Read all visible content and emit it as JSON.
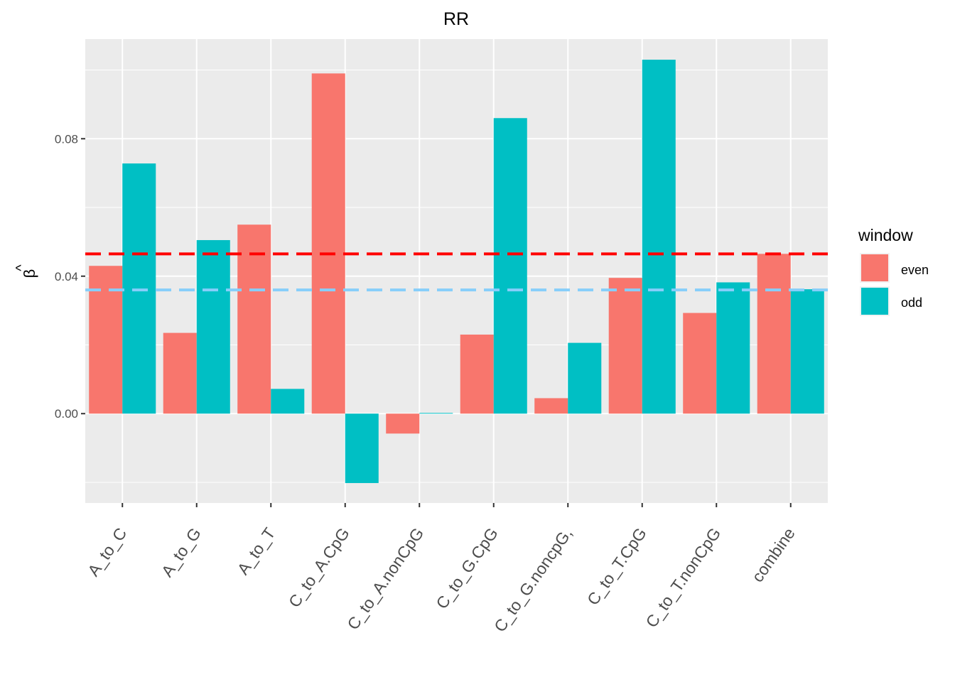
{
  "chart_data": {
    "type": "bar",
    "title": "RR",
    "xlabel": "",
    "ylabel": "β̂",
    "ylabel_base": "β",
    "ylabel_hat": "^",
    "categories": [
      "A_to_C",
      "A_to_G",
      "A_to_T",
      "C_to_A.CpG",
      "C_to_A.nonCpG",
      "C_to_G.CpG",
      "C_to_G.noncpG,",
      "C_to_T.CpG",
      "C_to_T.nonCpG",
      "combine"
    ],
    "series": [
      {
        "name": "even",
        "color": "#F8766D",
        "values": [
          0.043,
          0.0235,
          0.055,
          0.099,
          -0.0058,
          0.023,
          0.0045,
          0.0395,
          0.0293,
          0.0465
        ]
      },
      {
        "name": "odd",
        "color": "#00BFC4",
        "values": [
          0.0728,
          0.0505,
          0.0072,
          -0.0202,
          0.0002,
          0.086,
          0.0206,
          0.103,
          0.0382,
          0.0362
        ]
      }
    ],
    "ylim": [
      -0.026,
      0.109
    ],
    "yticks": [
      0.0,
      0.04,
      0.08
    ],
    "ytick_labels": [
      "0.00",
      "0.04",
      "0.08"
    ],
    "hlines": [
      {
        "y": 0.0465,
        "color": "#FF0000",
        "style": "dashed"
      },
      {
        "y": 0.036,
        "color": "#87CEFA",
        "style": "dashed"
      }
    ],
    "legend": {
      "title": "window",
      "position": "right",
      "entries": [
        "even",
        "odd"
      ]
    },
    "grid": true,
    "panel_background": "#EBEBEB"
  }
}
